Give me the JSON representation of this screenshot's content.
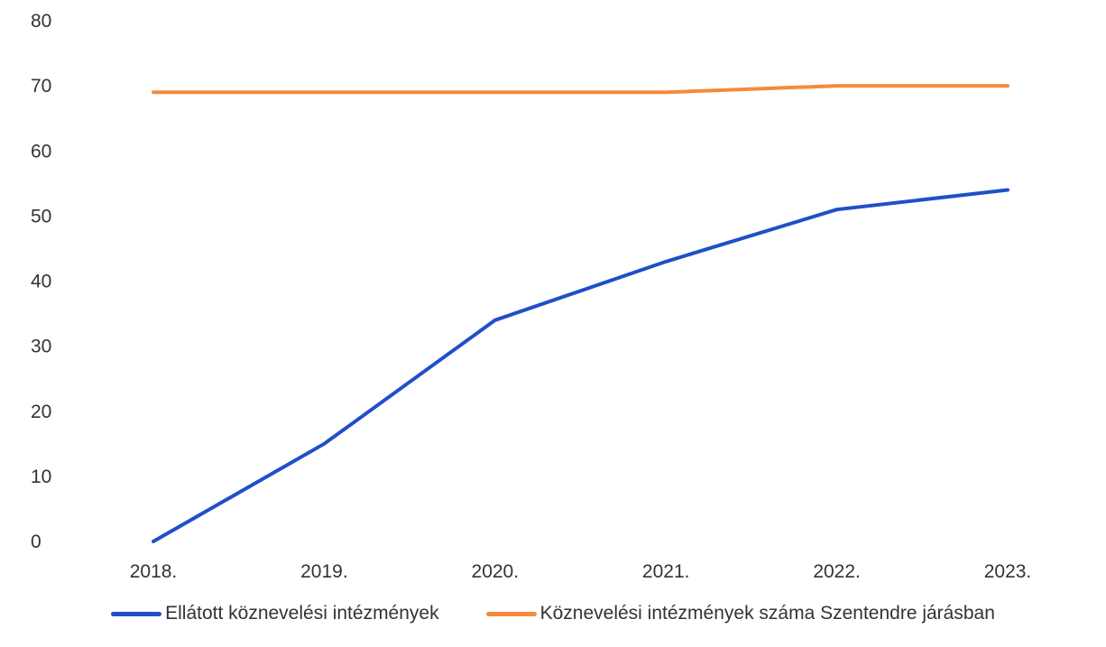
{
  "chart_data": {
    "type": "line",
    "title": "",
    "xlabel": "",
    "ylabel": "",
    "categories": [
      "2018.",
      "2019.",
      "2020.",
      "2021.",
      "2022.",
      "2023."
    ],
    "ylim": [
      0,
      80
    ],
    "yticks": [
      "0",
      "10",
      "20",
      "30",
      "40",
      "50",
      "60",
      "70",
      "80"
    ],
    "grid": false,
    "legend_position": "bottom",
    "series": [
      {
        "name": "Ellátott köznevelési intézmények",
        "values": [
          0,
          15,
          34,
          43,
          51,
          54
        ],
        "color": "#1f4fc9"
      },
      {
        "name": "Köznevelési intézmények száma Szentendre járásban",
        "values": [
          69,
          69,
          69,
          69,
          70,
          70
        ],
        "color": "#f58a3c"
      }
    ]
  }
}
